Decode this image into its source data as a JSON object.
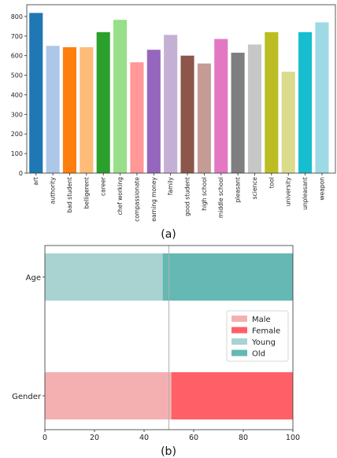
{
  "panel_labels": {
    "a": "(a)",
    "b": "(b)"
  },
  "chart_data": [
    {
      "type": "bar",
      "categories": [
        "art",
        "authority",
        "bad student",
        "belligerent",
        "career",
        "chef working",
        "compassionate",
        "earning money",
        "family",
        "good student",
        "high school",
        "middle school",
        "pleasant",
        "science",
        "tool",
        "university",
        "unpleasant",
        "weapon"
      ],
      "values": [
        818,
        650,
        643,
        643,
        720,
        783,
        566,
        630,
        706,
        600,
        560,
        685,
        615,
        657,
        720,
        518,
        720,
        770
      ],
      "colors": [
        "#1f77b4",
        "#aec7e8",
        "#ff7f0e",
        "#ffbb78",
        "#2ca02c",
        "#98df8a",
        "#ff9896",
        "#9467bd",
        "#c5b0d5",
        "#8c564b",
        "#c49c94",
        "#e377c2",
        "#7f7f7f",
        "#c7c7c7",
        "#bcbd22",
        "#dbdb8d",
        "#17becf",
        "#9edae5"
      ],
      "ylim": [
        0,
        860
      ],
      "yticks": [
        0,
        100,
        200,
        300,
        400,
        500,
        600,
        700,
        800
      ],
      "grid": false
    },
    {
      "type": "bar",
      "orientation": "horizontal",
      "stacked": true,
      "categories": [
        "Age",
        "Gender"
      ],
      "series": [
        {
          "name": "Male",
          "color": "#f4b0b1",
          "values": [
            0,
            51
          ]
        },
        {
          "name": "Female",
          "color": "#ff6068",
          "values": [
            0,
            49
          ]
        },
        {
          "name": "Young",
          "color": "#a8d3d1",
          "values": [
            47.5,
            0
          ]
        },
        {
          "name": "Old",
          "color": "#65b8b3",
          "values": [
            52.5,
            0
          ]
        }
      ],
      "xlim": [
        0,
        100
      ],
      "xticks": [
        0,
        20,
        40,
        60,
        80,
        100
      ],
      "reference_line": 50,
      "legend_position": "right"
    }
  ]
}
